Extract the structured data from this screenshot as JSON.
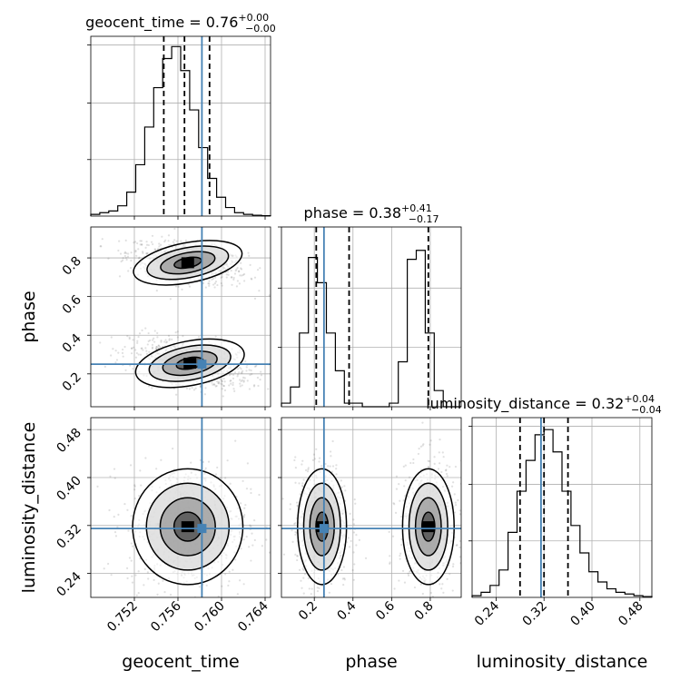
{
  "chart_data": {
    "type": "corner",
    "parameters": [
      {
        "name": "geocent_time",
        "xlabel": "geocent_time",
        "title": "geocent_time = 0.76",
        "title_sup": "+0.00",
        "title_sub": "−0.00",
        "range": [
          0.748,
          0.7645
        ],
        "ticks": [
          0.752,
          0.756,
          0.76,
          0.764
        ],
        "tick_labels": [
          "0.752",
          "0.756",
          "0.760",
          "0.764"
        ],
        "truth": 0.7582,
        "quantiles": [
          0.7547,
          0.7566,
          0.7589
        ],
        "hist": [
          0.01,
          0.02,
          0.03,
          0.06,
          0.14,
          0.3,
          0.52,
          0.75,
          0.92,
          0.99,
          0.85,
          0.62,
          0.4,
          0.22,
          0.11,
          0.05,
          0.02,
          0.01,
          0.005,
          0.002
        ],
        "ylim_hist": [
          0,
          1.05
        ]
      },
      {
        "name": "phase",
        "xlabel": "phase",
        "ylabel": "phase",
        "title": "phase = 0.38",
        "title_sup": "+0.41",
        "title_sub": "−0.17",
        "range": [
          0.03,
          0.96
        ],
        "ticks": [
          0.2,
          0.4,
          0.6,
          0.8
        ],
        "tick_labels": [
          "0.2",
          "0.4",
          "0.6",
          "0.8"
        ],
        "truth": 0.25,
        "quantiles": [
          0.21,
          0.38,
          0.79
        ],
        "hist": [
          0.02,
          0.11,
          0.41,
          0.83,
          0.69,
          0.41,
          0.2,
          0.02,
          0.02,
          0.0,
          0.0,
          0.0,
          0.02,
          0.25,
          0.82,
          0.87,
          0.41,
          0.09,
          0.0,
          0.0
        ],
        "ylim_hist": [
          0,
          1.0
        ]
      },
      {
        "name": "luminosity_distance",
        "xlabel": "luminosity_distance",
        "ylabel": "luminosity_distance",
        "title": "luminosity_distance = 0.32",
        "title_sup": "+0.04",
        "title_sub": "−0.04",
        "range": [
          0.2,
          0.5
        ],
        "ticks": [
          0.24,
          0.32,
          0.4,
          0.48
        ],
        "tick_labels": [
          "0.24",
          "0.32",
          "0.40",
          "0.48"
        ],
        "truth": 0.315,
        "quantiles": [
          0.28,
          0.32,
          0.36
        ],
        "hist": [
          0.01,
          0.03,
          0.07,
          0.16,
          0.38,
          0.62,
          0.8,
          0.95,
          0.98,
          0.85,
          0.62,
          0.42,
          0.26,
          0.15,
          0.09,
          0.05,
          0.03,
          0.02,
          0.01,
          0.005
        ],
        "ylim_hist": [
          0,
          1.05
        ]
      }
    ],
    "truth_color": "#4682b4",
    "pairs": [
      {
        "x_param": "geocent_time",
        "y_param": "phase",
        "modes": [
          {
            "cx": 0.7569,
            "cy": 0.775,
            "sx": 0.0022,
            "sy": 0.045,
            "rho": -0.45
          },
          {
            "cx": 0.7571,
            "cy": 0.255,
            "sx": 0.0022,
            "sy": 0.05,
            "rho": -0.45
          }
        ]
      },
      {
        "x_param": "geocent_time",
        "y_param": "luminosity_distance",
        "modes": [
          {
            "cx": 0.7569,
            "cy": 0.318,
            "sx": 0.0022,
            "sy": 0.042,
            "rho": 0.0
          }
        ]
      },
      {
        "x_param": "phase",
        "y_param": "luminosity_distance",
        "modes": [
          {
            "cx": 0.24,
            "cy": 0.318,
            "sx": 0.055,
            "sy": 0.042,
            "rho": 0.0
          },
          {
            "cx": 0.79,
            "cy": 0.318,
            "sx": 0.058,
            "sy": 0.042,
            "rho": 0.0
          }
        ]
      }
    ],
    "contour_levels_sigma": [
      0.5,
      1.0,
      1.5,
      2.0
    ]
  }
}
